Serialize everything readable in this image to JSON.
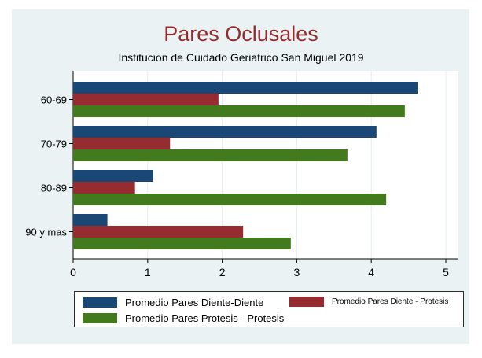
{
  "chart_data": {
    "type": "bar",
    "orientation": "horizontal",
    "title": "Pares Oclusales",
    "subtitle": "Institucion de Cuidado Geriatrico San Miguel 2019",
    "categories": [
      "60-69",
      "70-79",
      "80-89",
      "90 y mas"
    ],
    "series": [
      {
        "name": "Promedio Pares Diente-Diente",
        "color": "#1a4876",
        "values": [
          4.62,
          4.07,
          1.07,
          0.46
        ]
      },
      {
        "name": "Promedio Pares Diente - Protesis",
        "color": "#962c2f",
        "values": [
          1.95,
          1.3,
          0.83,
          2.28
        ]
      },
      {
        "name": "Promedio Pares Protesis - Protesis",
        "color": "#447a1e",
        "values": [
          4.45,
          3.68,
          4.2,
          2.92
        ]
      }
    ],
    "xlim": [
      0,
      5
    ],
    "xticks": [
      "0",
      "1",
      "2",
      "3",
      "4",
      "5"
    ],
    "xlabel": "",
    "ylabel": "",
    "grid": true,
    "legend_position": "bottom"
  }
}
